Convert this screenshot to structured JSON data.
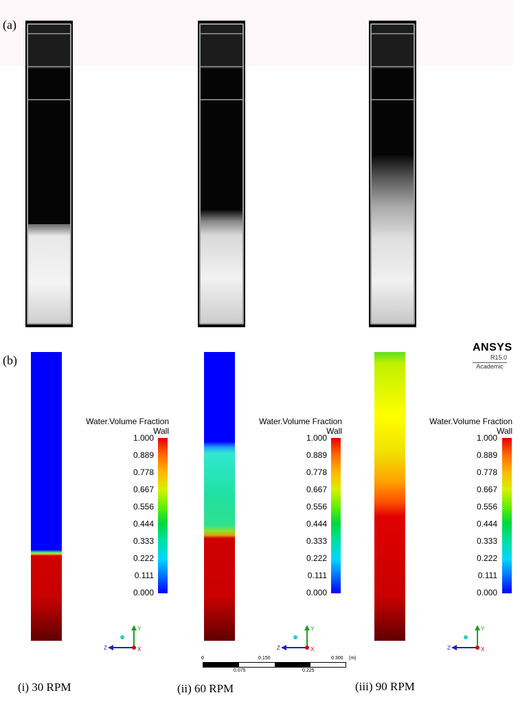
{
  "panels": {
    "a_label": "(a)",
    "b_label": "(b)"
  },
  "captions": [
    "(i) 30 RPM",
    "(ii) 60 RPM",
    "(iii) 90 RPM"
  ],
  "legend": {
    "title_line1": "Water.Volume Fraction",
    "title_line2": "Wall",
    "ticks": [
      "1.000",
      "0.889",
      "0.778",
      "0.667",
      "0.556",
      "0.444",
      "0.333",
      "0.222",
      "0.111",
      "0.000"
    ]
  },
  "ansys": {
    "logo": "ANSYS",
    "version": "R15.0",
    "edition": "Academic"
  },
  "scale_bar": {
    "top_labels": [
      "0",
      "0.150",
      "0.300"
    ],
    "unit": "(m)",
    "bottom_labels": [
      "0.075",
      "0.225"
    ]
  },
  "axes": {
    "y": "Y",
    "z": "Z",
    "x": "X"
  },
  "colors": {
    "air": "#0000ff",
    "water": "#d40000",
    "mixed_60": "#20e0a0",
    "mixed_90": "#e8f000"
  }
}
